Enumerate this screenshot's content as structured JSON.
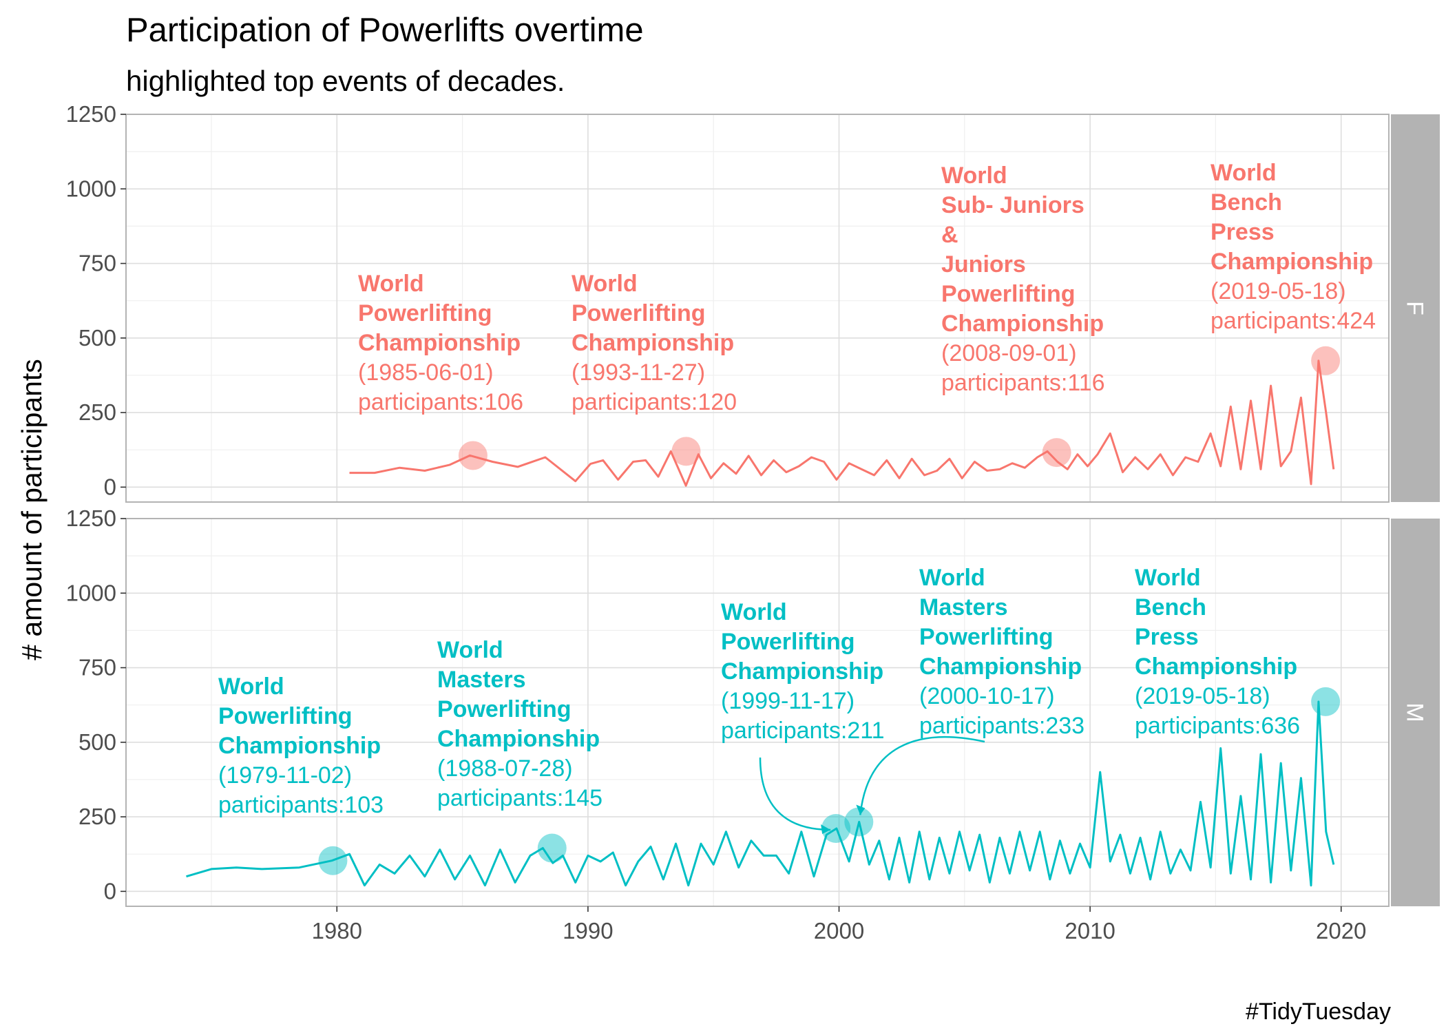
{
  "title": "Participation of Powerlifts overtime",
  "subtitle": "highlighted top events of decades.",
  "caption": "#TidyTuesday",
  "colors": {
    "F": "#F8766D",
    "M": "#00BFC4",
    "strip": "#B3B3B3",
    "grid_major": "#DEDEDE",
    "grid_minor": "#EFEFEF"
  },
  "chart_data": {
    "type": "line",
    "ylabel": "# amount of participants",
    "xlabel": "",
    "xlim": [
      1971.6,
      2021.9
    ],
    "ylim": [
      -50,
      1250
    ],
    "x_ticks": [
      1980,
      1990,
      2000,
      2010,
      2020
    ],
    "y_ticks": [
      0,
      250,
      500,
      750,
      1000,
      1250
    ],
    "grid": true,
    "facets": [
      {
        "label": "F",
        "series": [
          {
            "x": [
              1980.5,
              1981.5,
              1982.5,
              1983.5,
              1984.5,
              1985.3,
              1986.2,
              1987.2,
              1988.3,
              1989.5,
              1990.1,
              1990.6,
              1991.2,
              1991.8,
              1992.3,
              1992.8,
              1993.3,
              1993.9,
              1994.4,
              1994.9,
              1995.4,
              1995.9,
              1996.4,
              1996.9,
              1997.4,
              1997.9,
              1998.4,
              1998.9,
              1999.4,
              1999.9,
              2000.4,
              2000.9,
              2001.4,
              2001.9,
              2002.4,
              2002.9,
              2003.4,
              2003.9,
              2004.4,
              2004.9,
              2005.4,
              2005.9,
              2006.4,
              2006.9,
              2007.4,
              2007.9,
              2008.3,
              2008.7,
              2009.1,
              2009.5,
              2009.9,
              2010.3,
              2010.8,
              2011.3,
              2011.8,
              2012.3,
              2012.8,
              2013.3,
              2013.8,
              2014.3,
              2014.8,
              2015.2,
              2015.6,
              2016.0,
              2016.4,
              2016.8,
              2017.2,
              2017.6,
              2018.0,
              2018.4,
              2018.8,
              2019.1,
              2019.4,
              2019.7
            ],
            "y": [
              48,
              48,
              65,
              55,
              75,
              106,
              85,
              68,
              100,
              20,
              78,
              90,
              25,
              85,
              90,
              35,
              120,
              5,
              110,
              30,
              80,
              45,
              105,
              40,
              90,
              50,
              70,
              100,
              85,
              25,
              80,
              60,
              40,
              90,
              30,
              95,
              40,
              55,
              95,
              30,
              85,
              55,
              60,
              80,
              65,
              100,
              120,
              85,
              60,
              110,
              70,
              110,
              180,
              50,
              100,
              60,
              110,
              40,
              100,
              85,
              180,
              70,
              270,
              60,
              290,
              60,
              340,
              70,
              120,
              300,
              10,
              424,
              250,
              60
            ]
          }
        ],
        "highlights": [
          {
            "x": 1985.42,
            "y": 106,
            "title_lines": [
              "World",
              "Powerlifting",
              "Championship"
            ],
            "date": "(1985-06-01)",
            "participants": "participants:106"
          },
          {
            "x": 1993.91,
            "y": 120,
            "title_lines": [
              "World",
              "Powerlifting",
              "Championship"
            ],
            "date": "(1993-11-27)",
            "participants": "participants:120"
          },
          {
            "x": 2008.67,
            "y": 116,
            "title_lines": [
              "World",
              "Sub- Juniors",
              "&",
              "Juniors",
              "Powerlifting",
              "Championship"
            ],
            "date": "(2008-09-01)",
            "participants": "participants:116"
          },
          {
            "x": 2019.38,
            "y": 424,
            "title_lines": [
              "World",
              "Bench",
              "Press",
              "Championship"
            ],
            "date": "(2019-05-18)",
            "participants": "participants:424"
          }
        ]
      },
      {
        "label": "M",
        "series": [
          {
            "x": [
              1974.0,
              1975.0,
              1976.0,
              1977.0,
              1978.5,
              1979.8,
              1980.5,
              1981.1,
              1981.7,
              1982.3,
              1982.9,
              1983.5,
              1984.1,
              1984.7,
              1985.3,
              1985.9,
              1986.5,
              1987.1,
              1987.7,
              1988.2,
              1988.6,
              1989.0,
              1989.5,
              1990.0,
              1990.5,
              1991.0,
              1991.5,
              1992.0,
              1992.5,
              1993.0,
              1993.5,
              1994.0,
              1994.5,
              1995.0,
              1995.5,
              1996.0,
              1996.5,
              1997.0,
              1997.5,
              1998.0,
              1998.5,
              1999.0,
              1999.5,
              1999.9,
              2000.4,
              2000.8,
              2001.2,
              2001.6,
              2002.0,
              2002.4,
              2002.8,
              2003.2,
              2003.6,
              2004.0,
              2004.4,
              2004.8,
              2005.2,
              2005.6,
              2006.0,
              2006.4,
              2006.8,
              2007.2,
              2007.6,
              2008.0,
              2008.4,
              2008.8,
              2009.2,
              2009.6,
              2010.0,
              2010.4,
              2010.8,
              2011.2,
              2011.6,
              2012.0,
              2012.4,
              2012.8,
              2013.2,
              2013.6,
              2014.0,
              2014.4,
              2014.8,
              2015.2,
              2015.6,
              2016.0,
              2016.4,
              2016.8,
              2017.2,
              2017.6,
              2018.0,
              2018.4,
              2018.8,
              2019.1,
              2019.4,
              2019.7
            ],
            "y": [
              50,
              75,
              80,
              75,
              80,
              103,
              125,
              20,
              90,
              60,
              120,
              50,
              140,
              40,
              120,
              20,
              140,
              30,
              120,
              145,
              95,
              120,
              30,
              120,
              100,
              130,
              20,
              100,
              150,
              40,
              160,
              20,
              160,
              90,
              200,
              80,
              170,
              120,
              120,
              60,
              200,
              50,
              190,
              211,
              100,
              233,
              90,
              170,
              40,
              180,
              30,
              200,
              40,
              180,
              60,
              200,
              70,
              190,
              30,
              180,
              60,
              200,
              70,
              200,
              40,
              170,
              60,
              160,
              80,
              400,
              100,
              190,
              60,
              180,
              40,
              200,
              60,
              140,
              70,
              300,
              80,
              480,
              60,
              320,
              40,
              460,
              30,
              430,
              70,
              380,
              20,
              636,
              200,
              90
            ]
          }
        ],
        "highlights": [
          {
            "x": 1979.84,
            "y": 103,
            "title_lines": [
              "World",
              "Powerlifting",
              "Championship"
            ],
            "date": "(1979-11-02)",
            "participants": "participants:103"
          },
          {
            "x": 1988.57,
            "y": 145,
            "title_lines": [
              "World",
              "Masters",
              "Powerlifting",
              "Championship"
            ],
            "date": "(1988-07-28)",
            "participants": "participants:145"
          },
          {
            "x": 1999.88,
            "y": 211,
            "title_lines": [
              "World",
              "Powerlifting",
              "Championship"
            ],
            "date": "(1999-11-17)",
            "participants": "participants:211"
          },
          {
            "x": 2000.79,
            "y": 233,
            "title_lines": [
              "World",
              "Masters",
              "Powerlifting",
              "Championship"
            ],
            "date": "(2000-10-17)",
            "participants": "participants:233"
          },
          {
            "x": 2019.38,
            "y": 636,
            "title_lines": [
              "World",
              "Bench",
              "Press",
              "Championship"
            ],
            "date": "(2019-05-18)",
            "participants": "participants:636"
          }
        ]
      }
    ]
  }
}
